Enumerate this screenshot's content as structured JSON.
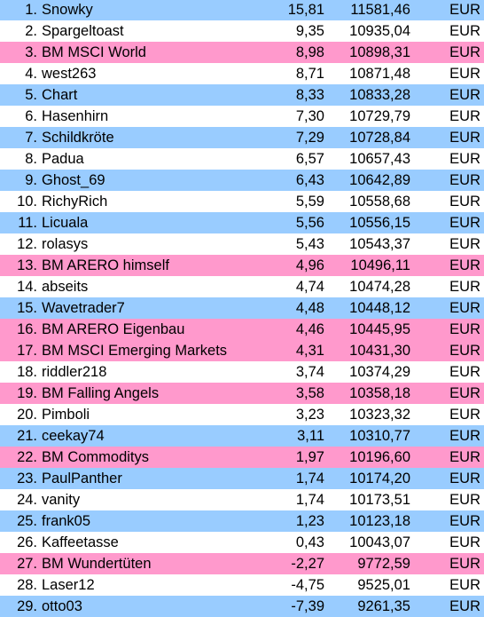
{
  "colors": {
    "blue": "#99ccff",
    "pink": "#ff99cc",
    "white": "#ffffff"
  },
  "rows": [
    {
      "rank": "1.",
      "name": "Snowky",
      "pct": "15,81",
      "value": "11581,46",
      "currency": "EUR",
      "color": "blue"
    },
    {
      "rank": "2.",
      "name": "Spargeltoast",
      "pct": "9,35",
      "value": "10935,04",
      "currency": "EUR",
      "color": "white"
    },
    {
      "rank": "3.",
      "name": "BM MSCI World",
      "pct": "8,98",
      "value": "10898,31",
      "currency": "EUR",
      "color": "pink"
    },
    {
      "rank": "4.",
      "name": "west263",
      "pct": "8,71",
      "value": "10871,48",
      "currency": "EUR",
      "color": "white"
    },
    {
      "rank": "5.",
      "name": "Chart",
      "pct": "8,33",
      "value": "10833,28",
      "currency": "EUR",
      "color": "blue"
    },
    {
      "rank": "6.",
      "name": "Hasenhirn",
      "pct": "7,30",
      "value": "10729,79",
      "currency": "EUR",
      "color": "white"
    },
    {
      "rank": "7.",
      "name": "Schildkröte",
      "pct": "7,29",
      "value": "10728,84",
      "currency": "EUR",
      "color": "blue"
    },
    {
      "rank": "8.",
      "name": "Padua",
      "pct": "6,57",
      "value": "10657,43",
      "currency": "EUR",
      "color": "white"
    },
    {
      "rank": "9.",
      "name": "Ghost_69",
      "pct": "6,43",
      "value": "10642,89",
      "currency": "EUR",
      "color": "blue"
    },
    {
      "rank": "10.",
      "name": "RichyRich",
      "pct": "5,59",
      "value": "10558,68",
      "currency": "EUR",
      "color": "white"
    },
    {
      "rank": "11.",
      "name": "Licuala",
      "pct": "5,56",
      "value": "10556,15",
      "currency": "EUR",
      "color": "blue"
    },
    {
      "rank": "12.",
      "name": "rolasys",
      "pct": "5,43",
      "value": "10543,37",
      "currency": "EUR",
      "color": "white"
    },
    {
      "rank": "13.",
      "name": "BM ARERO himself",
      "pct": "4,96",
      "value": "10496,11",
      "currency": "EUR",
      "color": "pink"
    },
    {
      "rank": "14.",
      "name": "abseits",
      "pct": "4,74",
      "value": "10474,28",
      "currency": "EUR",
      "color": "white"
    },
    {
      "rank": "15.",
      "name": "Wavetrader7",
      "pct": "4,48",
      "value": "10448,12",
      "currency": "EUR",
      "color": "blue"
    },
    {
      "rank": "16.",
      "name": "BM ARERO Eigenbau",
      "pct": "4,46",
      "value": "10445,95",
      "currency": "EUR",
      "color": "pink"
    },
    {
      "rank": "17.",
      "name": "BM MSCI Emerging Markets",
      "pct": "4,31",
      "value": "10431,30",
      "currency": "EUR",
      "color": "pink"
    },
    {
      "rank": "18.",
      "name": "riddler218",
      "pct": "3,74",
      "value": "10374,29",
      "currency": "EUR",
      "color": "white"
    },
    {
      "rank": "19.",
      "name": "BM Falling Angels",
      "pct": "3,58",
      "value": "10358,18",
      "currency": "EUR",
      "color": "pink"
    },
    {
      "rank": "20.",
      "name": "Pimboli",
      "pct": "3,23",
      "value": "10323,32",
      "currency": "EUR",
      "color": "white"
    },
    {
      "rank": "21.",
      "name": "ceekay74",
      "pct": "3,11",
      "value": "10310,77",
      "currency": "EUR",
      "color": "blue"
    },
    {
      "rank": "22.",
      "name": "BM Commoditys",
      "pct": "1,97",
      "value": "10196,60",
      "currency": "EUR",
      "color": "pink"
    },
    {
      "rank": "23.",
      "name": "PaulPanther",
      "pct": "1,74",
      "value": "10174,20",
      "currency": "EUR",
      "color": "blue"
    },
    {
      "rank": "24.",
      "name": "vanity",
      "pct": "1,74",
      "value": "10173,51",
      "currency": "EUR",
      "color": "white"
    },
    {
      "rank": "25.",
      "name": "frank05",
      "pct": "1,23",
      "value": "10123,18",
      "currency": "EUR",
      "color": "blue"
    },
    {
      "rank": "26.",
      "name": "Kaffeetasse",
      "pct": "0,43",
      "value": "10043,07",
      "currency": "EUR",
      "color": "white"
    },
    {
      "rank": "27.",
      "name": "BM Wundertüten",
      "pct": "-2,27",
      "value": "9772,59",
      "currency": "EUR",
      "color": "pink"
    },
    {
      "rank": "28.",
      "name": "Laser12",
      "pct": "-4,75",
      "value": "9525,01",
      "currency": "EUR",
      "color": "white"
    },
    {
      "rank": "29.",
      "name": "otto03",
      "pct": "-7,39",
      "value": "9261,35",
      "currency": "EUR",
      "color": "blue"
    }
  ]
}
